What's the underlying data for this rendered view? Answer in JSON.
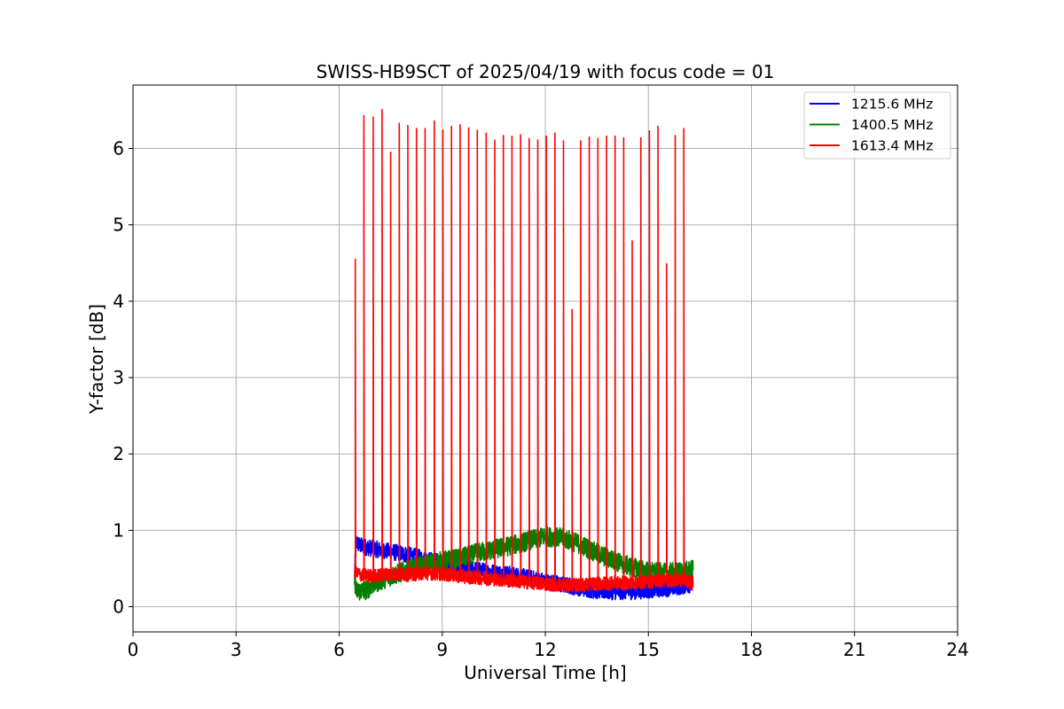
{
  "chart_data": {
    "type": "line",
    "title": "SWISS-HB9SCT of 2025/04/19 with focus code = 01",
    "xlabel": "Universal Time [h]",
    "ylabel": "Y-factor [dB]",
    "xlim": [
      0,
      24
    ],
    "ylim": [
      -0.33,
      6.83
    ],
    "xticks": [
      0,
      3,
      6,
      9,
      12,
      15,
      18,
      21,
      24
    ],
    "yticks": [
      0,
      1,
      2,
      3,
      4,
      5,
      6
    ],
    "grid": true,
    "legend_position": "top-right",
    "series": [
      {
        "name": "1215.6 MHz",
        "color": "#0000ff",
        "x": [
          6.45,
          6.5,
          6.6,
          6.8,
          7.0,
          7.5,
          8.0,
          8.5,
          9.0,
          9.5,
          10.0,
          10.5,
          11.0,
          11.5,
          12.0,
          12.5,
          13.0,
          13.5,
          14.0,
          14.5,
          15.0,
          15.5,
          16.0,
          16.3
        ],
        "values": [
          0.45,
          0.85,
          0.8,
          0.78,
          0.76,
          0.72,
          0.68,
          0.62,
          0.58,
          0.53,
          0.48,
          0.45,
          0.42,
          0.38,
          0.33,
          0.29,
          0.25,
          0.21,
          0.2,
          0.2,
          0.22,
          0.24,
          0.27,
          0.3
        ],
        "noise": 0.11
      },
      {
        "name": "1400.5 MHz",
        "color": "#008000",
        "x": [
          6.45,
          6.5,
          6.8,
          7.0,
          7.5,
          8.0,
          8.5,
          9.0,
          9.5,
          10.0,
          10.5,
          11.0,
          11.5,
          12.0,
          12.5,
          13.0,
          13.5,
          14.0,
          14.5,
          15.0,
          15.5,
          16.0,
          16.3
        ],
        "values": [
          0.35,
          0.2,
          0.22,
          0.3,
          0.4,
          0.48,
          0.55,
          0.6,
          0.63,
          0.7,
          0.75,
          0.8,
          0.86,
          0.92,
          0.9,
          0.82,
          0.7,
          0.6,
          0.52,
          0.46,
          0.44,
          0.46,
          0.48
        ],
        "noise": 0.13
      },
      {
        "name": "1613.4 MHz",
        "color": "#ff0000",
        "x": [
          6.45,
          6.6,
          7.0,
          7.5,
          8.0,
          8.5,
          9.0,
          9.5,
          10.0,
          10.5,
          11.0,
          11.5,
          12.0,
          12.5,
          13.0,
          13.5,
          14.0,
          14.5,
          15.0,
          15.5,
          16.0,
          16.3
        ],
        "values": [
          0.45,
          0.42,
          0.4,
          0.43,
          0.42,
          0.44,
          0.43,
          0.4,
          0.38,
          0.36,
          0.34,
          0.32,
          0.3,
          0.28,
          0.28,
          0.3,
          0.31,
          0.31,
          0.33,
          0.34,
          0.35,
          0.3
        ],
        "noise": 0.09,
        "spikes": [
          {
            "x": 6.47,
            "y": 4.55
          },
          {
            "x": 6.72,
            "y": 6.43
          },
          {
            "x": 6.99,
            "y": 6.41
          },
          {
            "x": 7.25,
            "y": 6.51
          },
          {
            "x": 7.5,
            "y": 5.95
          },
          {
            "x": 7.75,
            "y": 6.33
          },
          {
            "x": 8.0,
            "y": 6.3
          },
          {
            "x": 8.25,
            "y": 6.26
          },
          {
            "x": 8.5,
            "y": 6.26
          },
          {
            "x": 8.77,
            "y": 6.36
          },
          {
            "x": 9.02,
            "y": 6.24
          },
          {
            "x": 9.27,
            "y": 6.29
          },
          {
            "x": 9.52,
            "y": 6.31
          },
          {
            "x": 9.77,
            "y": 6.27
          },
          {
            "x": 10.02,
            "y": 6.24
          },
          {
            "x": 10.28,
            "y": 6.2
          },
          {
            "x": 10.53,
            "y": 6.11
          },
          {
            "x": 10.78,
            "y": 6.17
          },
          {
            "x": 11.03,
            "y": 6.16
          },
          {
            "x": 11.28,
            "y": 6.18
          },
          {
            "x": 11.53,
            "y": 6.13
          },
          {
            "x": 11.78,
            "y": 6.11
          },
          {
            "x": 12.03,
            "y": 6.16
          },
          {
            "x": 12.28,
            "y": 6.2
          },
          {
            "x": 12.53,
            "y": 6.1
          },
          {
            "x": 12.78,
            "y": 3.89
          },
          {
            "x": 13.03,
            "y": 6.1
          },
          {
            "x": 13.28,
            "y": 6.15
          },
          {
            "x": 13.53,
            "y": 6.13
          },
          {
            "x": 13.78,
            "y": 6.16
          },
          {
            "x": 14.03,
            "y": 6.16
          },
          {
            "x": 14.28,
            "y": 6.14
          },
          {
            "x": 14.53,
            "y": 4.79
          },
          {
            "x": 14.78,
            "y": 6.14
          },
          {
            "x": 15.03,
            "y": 6.23
          },
          {
            "x": 15.28,
            "y": 6.29
          },
          {
            "x": 15.53,
            "y": 4.49
          },
          {
            "x": 15.78,
            "y": 6.17
          },
          {
            "x": 16.03,
            "y": 6.26
          }
        ]
      }
    ]
  }
}
